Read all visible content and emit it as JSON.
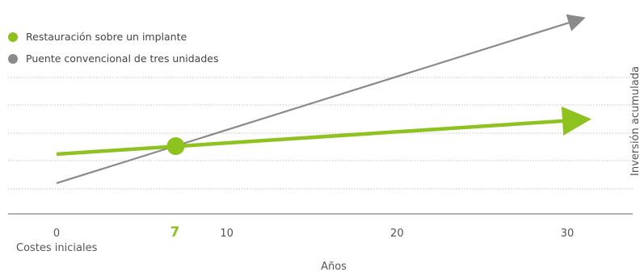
{
  "chart_data": {
    "type": "line",
    "xlabel": "Años",
    "ylabel": "Inversión acumulada",
    "xlim": [
      0,
      30
    ],
    "xticks": [
      {
        "value": 0,
        "label": "0"
      },
      {
        "value": 7,
        "label": "7"
      },
      {
        "value": 10,
        "label": "10"
      },
      {
        "value": 20,
        "label": "20"
      },
      {
        "value": 30,
        "label": "30"
      }
    ],
    "x_annotation": "Costes iniciales",
    "highlight_x": 7,
    "grid": true,
    "legend_position": "top-left",
    "series": [
      {
        "name": "Restauración sobre un implante",
        "color": "#8dc21f",
        "x": [
          0,
          30
        ],
        "y": [
          2,
          4.3
        ]
      },
      {
        "name": "Puente convencional de tres unidades",
        "color": "#8a8a8a",
        "x": [
          0,
          30
        ],
        "y": [
          0,
          11
        ]
      }
    ],
    "intersection": {
      "x": 7,
      "y": 2.55
    },
    "colors": {
      "accent": "#8dc21f",
      "gray": "#8a8a8a",
      "grid": "#b4b4b4",
      "axis": "#666666"
    }
  }
}
